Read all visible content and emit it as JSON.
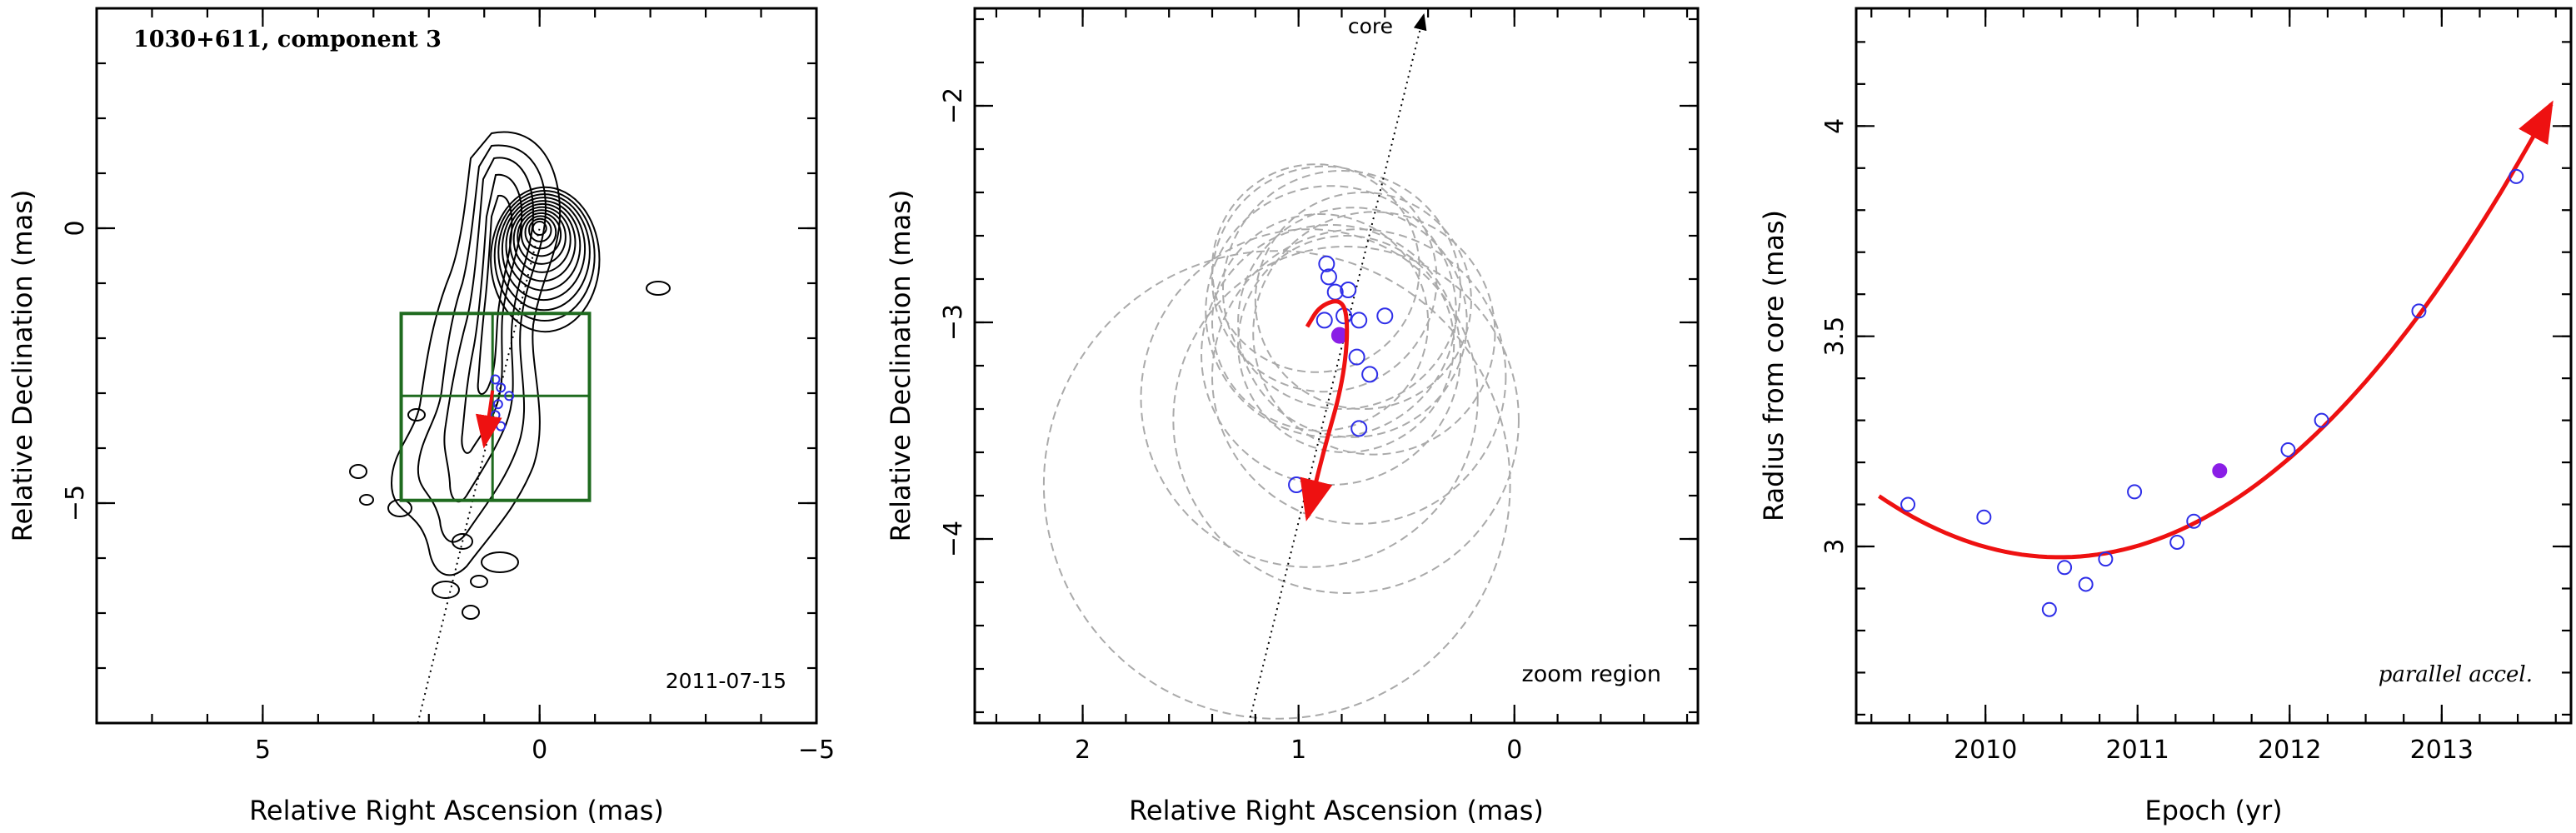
{
  "chart_data": [
    {
      "type": "scatter",
      "title": "1030+611, component 3",
      "xlabel": "Relative Right Ascension (mas)",
      "ylabel": "Relative Declination (mas)",
      "xlim": [
        8,
        -5
      ],
      "ylim": [
        -9,
        4
      ],
      "xticks": [
        5,
        0,
        -5
      ],
      "xtick_labels": [
        "5",
        "0",
        "−5"
      ],
      "yticks": [
        0,
        -5
      ],
      "ytick_labels": [
        "0",
        "−5"
      ],
      "annotation": "2011-07-15",
      "grid": false,
      "contour_center": [
        0,
        0
      ],
      "contour_levels": 12,
      "jet_axis_line": [
        [
          2.2,
          -9.0
        ],
        [
          0.0,
          0.0
        ]
      ],
      "zoom_box": {
        "x": [
          2.5,
          -0.9
        ],
        "y": [
          -1.55,
          -4.95
        ],
        "cross": [
          0.85,
          -3.05
        ]
      },
      "points": [
        {
          "x": 0.8,
          "y": -2.75
        },
        {
          "x": 0.7,
          "y": -2.9
        },
        {
          "x": 0.55,
          "y": -3.05
        },
        {
          "x": 0.75,
          "y": -3.2
        },
        {
          "x": 0.8,
          "y": -3.4
        },
        {
          "x": 0.7,
          "y": -3.6
        }
      ],
      "arrow_path": [
        [
          0.85,
          -2.95
        ],
        [
          0.9,
          -3.3
        ],
        [
          1.0,
          -3.95
        ]
      ],
      "colors": {
        "contours": "#000000",
        "zoom_box": "#1f6b1f",
        "points": "#2e2ee8",
        "arrow": "#ee1111"
      }
    },
    {
      "type": "scatter",
      "title": "",
      "xlabel": "Relative Right Ascension (mas)",
      "ylabel": "Relative Declination (mas)",
      "xlim": [
        2.5,
        -0.85
      ],
      "ylim": [
        -4.85,
        -1.55
      ],
      "xticks": [
        2,
        1,
        0
      ],
      "xtick_labels": [
        "2",
        "1",
        "0"
      ],
      "yticks": [
        -2,
        -3,
        -4
      ],
      "ytick_labels": [
        "−2",
        "−3",
        "−4"
      ],
      "annotations": {
        "core": "core",
        "zoom": "zoom region"
      },
      "grid": false,
      "jet_axis_line": [
        [
          1.23,
          -4.85
        ],
        [
          0.42,
          -1.58
        ]
      ],
      "points": [
        {
          "x": 0.87,
          "y": -2.73
        },
        {
          "x": 0.86,
          "y": -2.79
        },
        {
          "x": 0.83,
          "y": -2.86
        },
        {
          "x": 0.77,
          "y": -2.85
        },
        {
          "x": 0.88,
          "y": -2.99
        },
        {
          "x": 0.79,
          "y": -2.97
        },
        {
          "x": 0.72,
          "y": -2.99
        },
        {
          "x": 0.6,
          "y": -2.97
        },
        {
          "x": 0.73,
          "y": -3.16
        },
        {
          "x": 0.67,
          "y": -3.24
        },
        {
          "x": 0.72,
          "y": -3.49
        },
        {
          "x": 1.01,
          "y": -3.75
        }
      ],
      "filled_point": {
        "x": 0.81,
        "y": -3.06
      },
      "circles": [
        {
          "cx": 0.92,
          "cy": -2.75,
          "r": 0.48
        },
        {
          "cx": 0.88,
          "cy": -2.8,
          "r": 0.52
        },
        {
          "cx": 0.8,
          "cy": -2.85,
          "r": 0.55
        },
        {
          "cx": 0.7,
          "cy": -2.9,
          "r": 0.5
        },
        {
          "cx": 0.85,
          "cy": -2.95,
          "r": 0.58
        },
        {
          "cx": 0.75,
          "cy": -3.0,
          "r": 0.53
        },
        {
          "cx": 0.9,
          "cy": -3.0,
          "r": 0.5
        },
        {
          "cx": 0.65,
          "cy": -3.05,
          "r": 0.56
        },
        {
          "cx": 0.78,
          "cy": -3.1,
          "r": 0.5
        },
        {
          "cx": 0.85,
          "cy": -3.15,
          "r": 0.6
        },
        {
          "cx": 0.72,
          "cy": -3.25,
          "r": 0.68
        },
        {
          "cx": 0.95,
          "cy": -3.35,
          "r": 0.78
        },
        {
          "cx": 0.78,
          "cy": -3.45,
          "r": 0.8
        },
        {
          "cx": 1.1,
          "cy": -3.75,
          "r": 1.08
        }
      ],
      "arrow_path": [
        [
          0.96,
          -3.02
        ],
        [
          0.9,
          -2.92
        ],
        [
          0.79,
          -2.89
        ],
        [
          0.77,
          -3.05
        ],
        [
          0.8,
          -3.3
        ],
        [
          0.88,
          -3.58
        ],
        [
          0.96,
          -3.9
        ]
      ],
      "colors": {
        "circles": "#aaaaaa",
        "points": "#2e2ee8",
        "filled_point": "#8a1ee6",
        "arrow": "#ee1111"
      }
    },
    {
      "type": "scatter",
      "title": "",
      "xlabel": "Epoch (yr)",
      "ylabel": "Radius from core (mas)",
      "xlim": [
        2009.15,
        2013.85
      ],
      "ylim": [
        2.58,
        4.28
      ],
      "xticks": [
        2010,
        2011,
        2012,
        2013
      ],
      "xtick_labels": [
        "2010",
        "2011",
        "2012",
        "2013"
      ],
      "yticks": [
        3,
        3.5,
        4
      ],
      "ytick_labels": [
        "3",
        "3.5",
        "4"
      ],
      "annotation": "parallel accel.",
      "grid": false,
      "points": [
        {
          "x": 2009.49,
          "y": 3.1
        },
        {
          "x": 2009.99,
          "y": 3.07
        },
        {
          "x": 2010.42,
          "y": 2.85
        },
        {
          "x": 2010.52,
          "y": 2.95
        },
        {
          "x": 2010.66,
          "y": 2.91
        },
        {
          "x": 2010.79,
          "y": 2.97
        },
        {
          "x": 2010.98,
          "y": 3.13
        },
        {
          "x": 2011.26,
          "y": 3.01
        },
        {
          "x": 2011.37,
          "y": 3.06
        },
        {
          "x": 2011.99,
          "y": 3.23
        },
        {
          "x": 2012.21,
          "y": 3.3
        },
        {
          "x": 2012.85,
          "y": 3.56
        },
        {
          "x": 2013.49,
          "y": 3.88
        }
      ],
      "filled_point": {
        "x": 2011.54,
        "y": 3.18
      },
      "fit_range": [
        2009.3,
        2013.72
      ],
      "colors": {
        "points": "#2e2ee8",
        "filled_point": "#8a1ee6",
        "fit": "#ee1111"
      }
    }
  ]
}
